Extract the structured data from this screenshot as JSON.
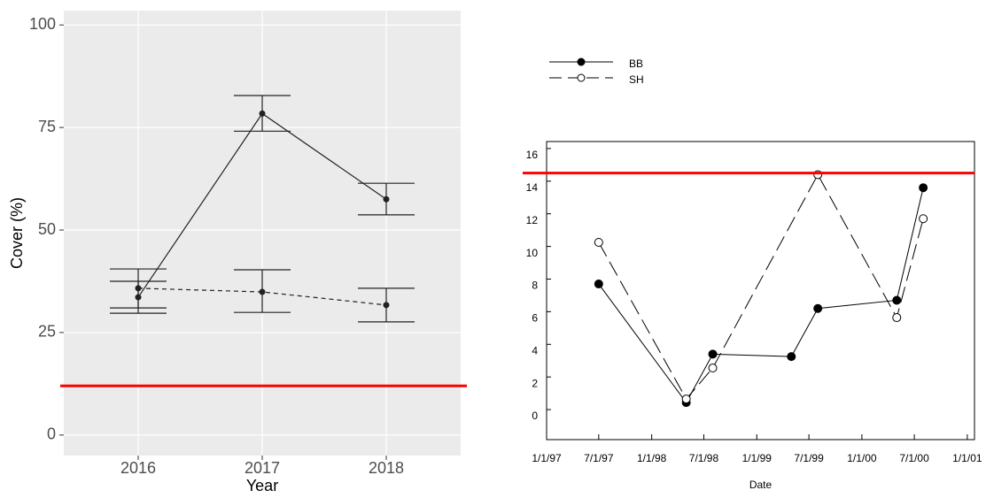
{
  "chart_data": [
    {
      "type": "line",
      "categories": [
        "2016",
        "2017",
        "2018"
      ],
      "xlabel": "Year",
      "ylabel": "Cover (%)",
      "ylim": [
        -5,
        103.5
      ],
      "yticks": [
        0,
        25,
        50,
        75,
        100
      ],
      "grid": true,
      "reference_line": {
        "value": 12,
        "color": "#ff0000"
      },
      "series": [
        {
          "values": [
            33.6,
            78.4,
            57.5
          ],
          "lower": [
            29.7,
            74.1,
            53.7
          ],
          "upper": [
            37.5,
            82.8,
            61.4
          ],
          "color": "#222222",
          "dash": false
        },
        {
          "values": [
            35.8,
            34.9,
            31.7
          ],
          "lower": [
            31,
            29.9,
            27.6
          ],
          "upper": [
            40.5,
            40.3,
            35.8
          ],
          "color": "#222222",
          "dash": true
        }
      ]
    },
    {
      "type": "line",
      "xlabel": "Date",
      "xlim": [
        "1997-01-01",
        "2001-01-26"
      ],
      "xticks": [
        {
          "value": "1997-01-01",
          "label": "1/1/97"
        },
        {
          "value": "1997-07-01",
          "label": "7/1/97"
        },
        {
          "value": "1998-01-01",
          "label": "1/1/98"
        },
        {
          "value": "1998-07-01",
          "label": "7/1/98"
        },
        {
          "value": "1999-01-01",
          "label": "1/1/99"
        },
        {
          "value": "1999-07-01",
          "label": "7/1/99"
        },
        {
          "value": "2000-01-01",
          "label": "1/1/00"
        },
        {
          "value": "2000-07-01",
          "label": "7/1/00"
        },
        {
          "value": "2001-01-01",
          "label": "1/1/01"
        }
      ],
      "ylim": [
        -1.84,
        16.43
      ],
      "yticks": [
        0,
        2,
        4,
        6,
        8,
        10,
        12,
        14,
        16
      ],
      "grid": false,
      "legend": "top-left",
      "reference_line": {
        "value": 14.5,
        "color": "#ff0000"
      },
      "series": [
        {
          "name": "BB",
          "marker": "filled",
          "dash": false,
          "color": "#000000",
          "x": [
            "1997-07-01",
            "1998-05-01",
            "1998-08-01",
            "1999-05-01",
            "1999-08-01",
            "2000-05-01",
            "2000-08-01"
          ],
          "values": [
            7.7,
            0.43,
            3.4,
            3.25,
            6.2,
            6.7,
            13.6
          ]
        },
        {
          "name": "SH",
          "marker": "open",
          "dash": true,
          "color": "#000000",
          "x": [
            "1997-07-01",
            "1998-05-01",
            "1998-08-01",
            "1999-08-01",
            "2000-05-01",
            "2000-08-01"
          ],
          "values": [
            10.25,
            0.65,
            2.55,
            14.4,
            5.64,
            11.7
          ]
        }
      ]
    }
  ]
}
